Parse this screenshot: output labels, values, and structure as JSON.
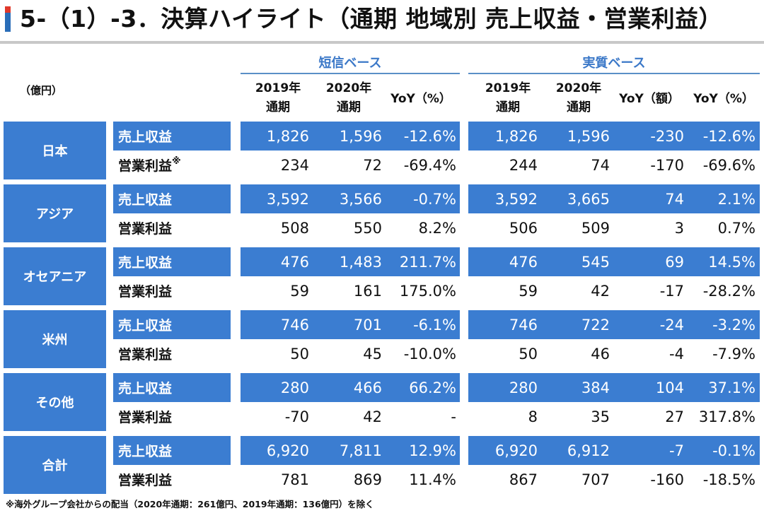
{
  "title": "5-（1）-3．決算ハイライト（通期 地域別 売上収益・営業利益）",
  "unit_label": "（億円）",
  "bases": [
    {
      "label": "短信ベース"
    },
    {
      "label": "実質ベース"
    }
  ],
  "columns": [
    {
      "line1": "2019年",
      "line2": "通期"
    },
    {
      "line1": "2020年",
      "line2": "通期"
    },
    {
      "line1": "YoY（%）",
      "line2": ""
    },
    {
      "line1": "2019年",
      "line2": "通期"
    },
    {
      "line1": "2020年",
      "line2": "通期"
    },
    {
      "line1": "YoY（額）",
      "line2": ""
    },
    {
      "line1": "YoY（%）",
      "line2": ""
    }
  ],
  "metric_labels": {
    "revenue": "売上収益",
    "operating_profit": "営業利益",
    "footnote_mark": "※"
  },
  "colors": {
    "accent_blue": "#3b7dd1",
    "base_header_blue": "#3b78c8",
    "title_accent_red": "#e0392b"
  },
  "regions": [
    {
      "name": "日本",
      "revenue": [
        "1,826",
        "1,596",
        "-12.6%",
        "1,826",
        "1,596",
        "-230",
        "-12.6%"
      ],
      "operating_profit": [
        "234",
        "72",
        "-69.4%",
        "244",
        "74",
        "-170",
        "-69.6%"
      ],
      "op_footnote": true
    },
    {
      "name": "アジア",
      "revenue": [
        "3,592",
        "3,566",
        "-0.7%",
        "3,592",
        "3,665",
        "74",
        "2.1%"
      ],
      "operating_profit": [
        "508",
        "550",
        "8.2%",
        "506",
        "509",
        "3",
        "0.7%"
      ]
    },
    {
      "name": "オセアニア",
      "revenue": [
        "476",
        "1,483",
        "211.7%",
        "476",
        "545",
        "69",
        "14.5%"
      ],
      "operating_profit": [
        "59",
        "161",
        "175.0%",
        "59",
        "42",
        "-17",
        "-28.2%"
      ]
    },
    {
      "name": "米州",
      "revenue": [
        "746",
        "701",
        "-6.1%",
        "746",
        "722",
        "-24",
        "-3.2%"
      ],
      "operating_profit": [
        "50",
        "45",
        "-10.0%",
        "50",
        "46",
        "-4",
        "-7.9%"
      ]
    },
    {
      "name": "その他",
      "revenue": [
        "280",
        "466",
        "66.2%",
        "280",
        "384",
        "104",
        "37.1%"
      ],
      "operating_profit": [
        "-70",
        "42",
        "-",
        "8",
        "35",
        "27",
        "317.8%"
      ]
    },
    {
      "name": "合計",
      "revenue": [
        "6,920",
        "7,811",
        "12.9%",
        "6,920",
        "6,912",
        "-7",
        "-0.1%"
      ],
      "operating_profit": [
        "781",
        "869",
        "11.4%",
        "867",
        "707",
        "-160",
        "-18.5%"
      ]
    }
  ],
  "footnote": "※海外グループ会社からの配当（2020年通期：261億円、2019年通期：136億円）を除く"
}
